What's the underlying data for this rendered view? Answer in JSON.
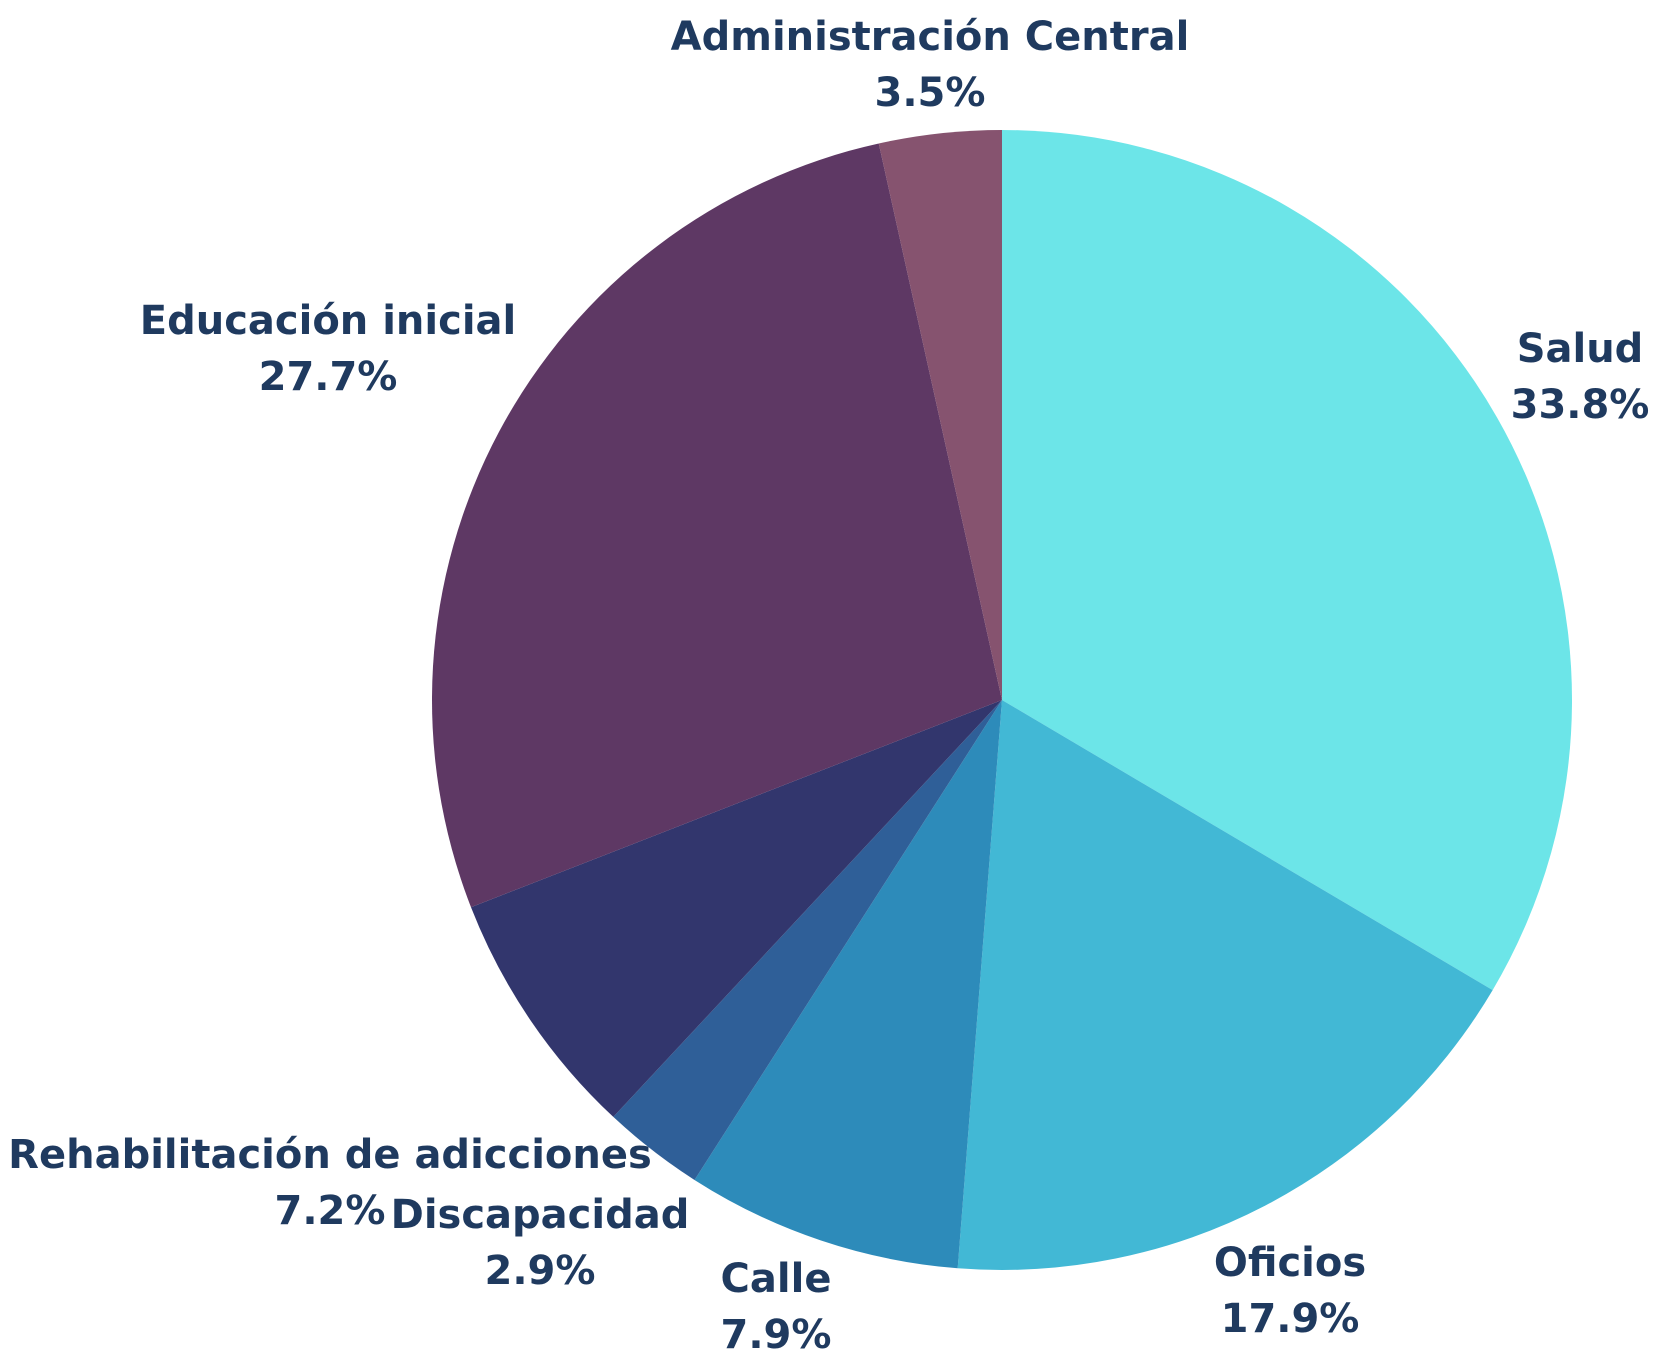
{
  "chart_data": {
    "type": "pie",
    "slices": [
      {
        "label": "Salud",
        "value": 33.8,
        "display": "33.8%",
        "color": "#6ce5e8"
      },
      {
        "label": "Oficios",
        "value": 17.9,
        "display": "17.9%",
        "color": "#42b8d5"
      },
      {
        "label": "Calle",
        "value": 7.9,
        "display": "7.9%",
        "color": "#2d8bba"
      },
      {
        "label": "Discapacidad",
        "value": 2.9,
        "display": "2.9%",
        "color": "#2f5f98"
      },
      {
        "label": "Rehabilitación de adicciones",
        "value": 7.2,
        "display": "7.2%",
        "color": "#32366d"
      },
      {
        "label": "Educación inicial",
        "value": 27.7,
        "display": "27.7%",
        "color": "#5e3864"
      },
      {
        "label": "Administración Central",
        "value": 3.5,
        "display": "3.5%",
        "color": "#86536f"
      }
    ],
    "start_angle": "12 o'clock",
    "direction": "clockwise",
    "legend": "none"
  }
}
